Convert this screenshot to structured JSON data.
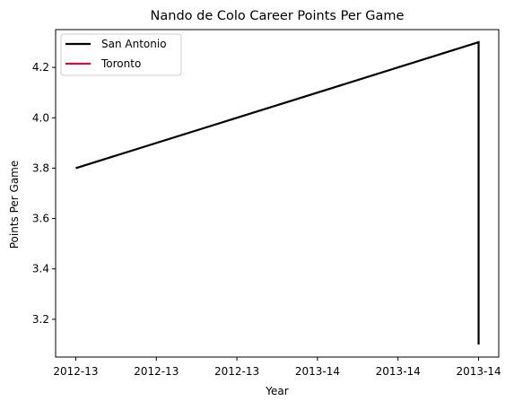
{
  "chart_data": {
    "type": "line",
    "title": "Nando de Colo Career Points Per Game",
    "xlabel": "Year",
    "ylabel": "Points Per Game",
    "x_tick_labels": [
      "2012-13",
      "2012-13",
      "2012-13",
      "2013-14",
      "2013-14",
      "2013-14"
    ],
    "x_tick_positions": [
      0,
      1,
      2,
      3,
      4,
      5
    ],
    "xlim": [
      -0.25,
      5.25
    ],
    "ylim": [
      3.05,
      4.35
    ],
    "y_ticks": [
      3.2,
      3.4,
      3.6,
      3.8,
      4.0,
      4.2
    ],
    "y_tick_labels": [
      "3.2",
      "3.4",
      "3.6",
      "3.8",
      "4.0",
      "4.2"
    ],
    "grid": false,
    "legend_position": "top-left",
    "series": [
      {
        "name": "San Antonio",
        "color": "#000000",
        "points": [
          {
            "x": 0,
            "y": 3.8
          },
          {
            "x": 5,
            "y": 4.3
          },
          {
            "x": 5,
            "y": 3.1
          }
        ]
      },
      {
        "name": "Toronto",
        "color": "#C8103E",
        "points": []
      }
    ]
  }
}
